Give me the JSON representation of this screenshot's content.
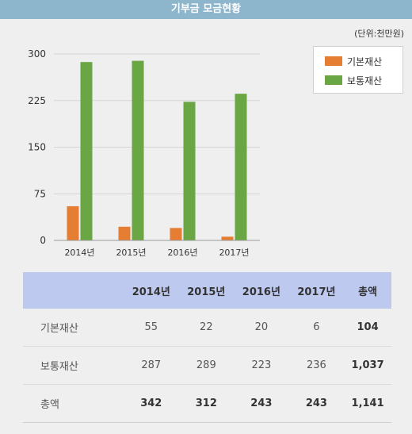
{
  "header": {
    "title": "기부금 모금현황"
  },
  "unit_label": "(단위:천만원)",
  "chart_data": {
    "type": "bar",
    "categories": [
      "2014년",
      "2015년",
      "2016년",
      "2017년"
    ],
    "series": [
      {
        "name": "기본재산",
        "values": [
          55,
          22,
          20,
          6
        ],
        "color": "#e57d32"
      },
      {
        "name": "보통재산",
        "values": [
          287,
          289,
          223,
          236
        ],
        "color": "#6aa744"
      }
    ],
    "ylim": [
      0,
      300
    ],
    "yticks": [
      "0",
      "75",
      "150",
      "225",
      "300"
    ],
    "grid": true,
    "legend_position": "top-right",
    "xlabel": "",
    "ylabel": ""
  },
  "table": {
    "headers": [
      "",
      "2014년",
      "2015년",
      "2016년",
      "2017년",
      "총액"
    ],
    "rows": [
      {
        "label": "기본재산",
        "cells": [
          "55",
          "22",
          "20",
          "6",
          "104"
        ]
      },
      {
        "label": "보통재산",
        "cells": [
          "287",
          "289",
          "223",
          "236",
          "1,037"
        ]
      },
      {
        "label": "총액",
        "cells": [
          "342",
          "312",
          "243",
          "243",
          "1,141"
        ]
      }
    ]
  }
}
